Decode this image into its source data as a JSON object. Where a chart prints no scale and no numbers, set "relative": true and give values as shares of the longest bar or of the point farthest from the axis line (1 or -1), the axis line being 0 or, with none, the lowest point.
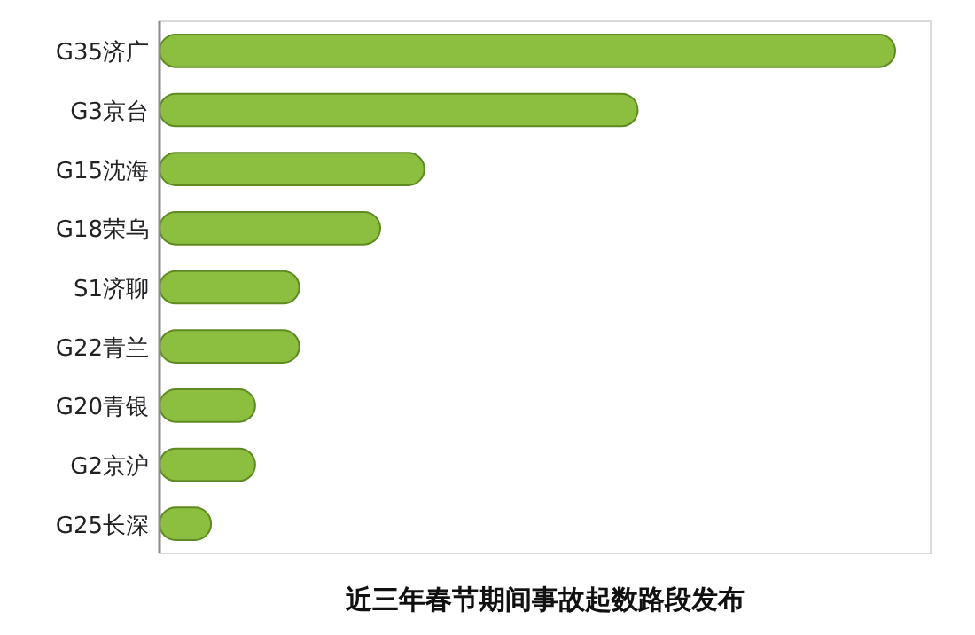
{
  "chart_data": {
    "type": "bar",
    "orientation": "horizontal",
    "relative": true,
    "title": "近三年春节期间事故起数路段发布",
    "categories": [
      "G35济广",
      "G3京台",
      "G15沈海",
      "G18荣乌",
      "S1济聊",
      "G22青兰",
      "G20青银",
      "G2京沪",
      "G25长深"
    ],
    "values": [
      1,
      0.65,
      0.36,
      0.3,
      0.19,
      0.19,
      0.13,
      0.13,
      0.07
    ],
    "color": "#8cbf3f"
  }
}
